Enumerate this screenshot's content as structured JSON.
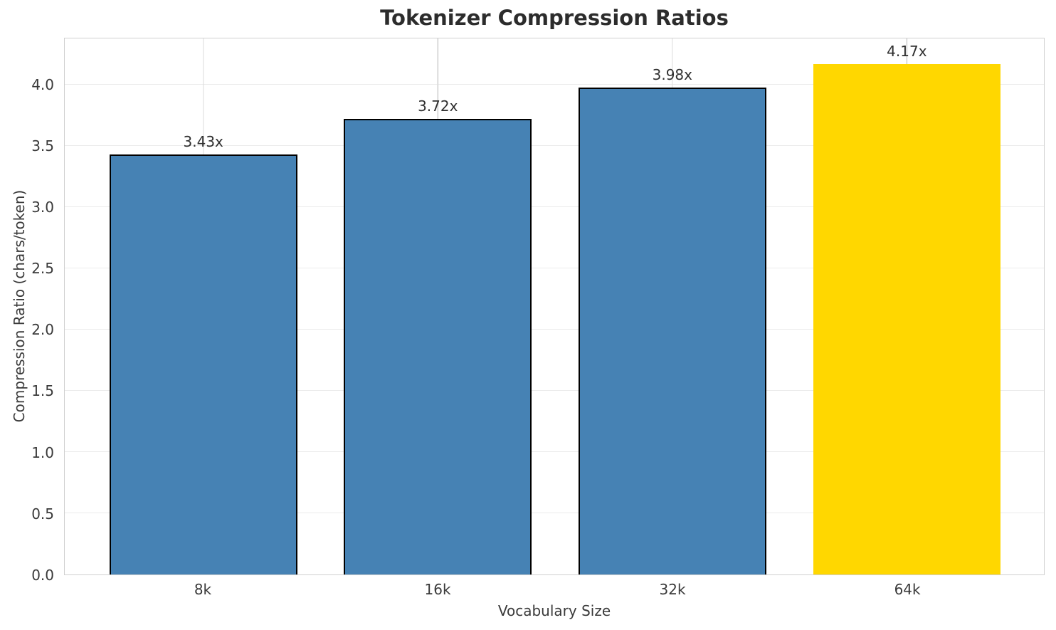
{
  "title": "Tokenizer Compression Ratios",
  "chart_data": {
    "type": "bar",
    "title": "Tokenizer Compression Ratios",
    "xlabel": "Vocabulary Size",
    "ylabel": "Compression Ratio (chars/token)",
    "categories": [
      "8k",
      "16k",
      "32k",
      "64k"
    ],
    "values": [
      3.43,
      3.72,
      3.98,
      4.17
    ],
    "bar_labels": [
      "3.43x",
      "3.72x",
      "3.98x",
      "4.17x"
    ],
    "ylim": [
      0,
      4.38
    ],
    "yticks": [
      0,
      0.5,
      1,
      1.5,
      2,
      2.5,
      3,
      3.5,
      4
    ],
    "ytick_labels": [
      "0.0",
      "0.5",
      "1.0",
      "1.5",
      "2.0",
      "2.5",
      "3.0",
      "3.5",
      "4.0"
    ],
    "grid": true,
    "legend_position": "none",
    "bar_colors": [
      "#4682B4",
      "#4682B4",
      "#4682B4",
      "#FFD700"
    ],
    "bar_edge_colors": [
      "#000000",
      "#000000",
      "#000000",
      "none"
    ]
  },
  "colors": {
    "bar_default": "#4682B4",
    "bar_highlight": "#FFD700",
    "bar_edge": "#000000",
    "grid_horizontal": "#ebebeb",
    "grid_vertical": "#dcdcdc",
    "spine": "#d0d0d0",
    "tick_text": "#3a3a3a",
    "title_text": "#2c2c2c"
  }
}
